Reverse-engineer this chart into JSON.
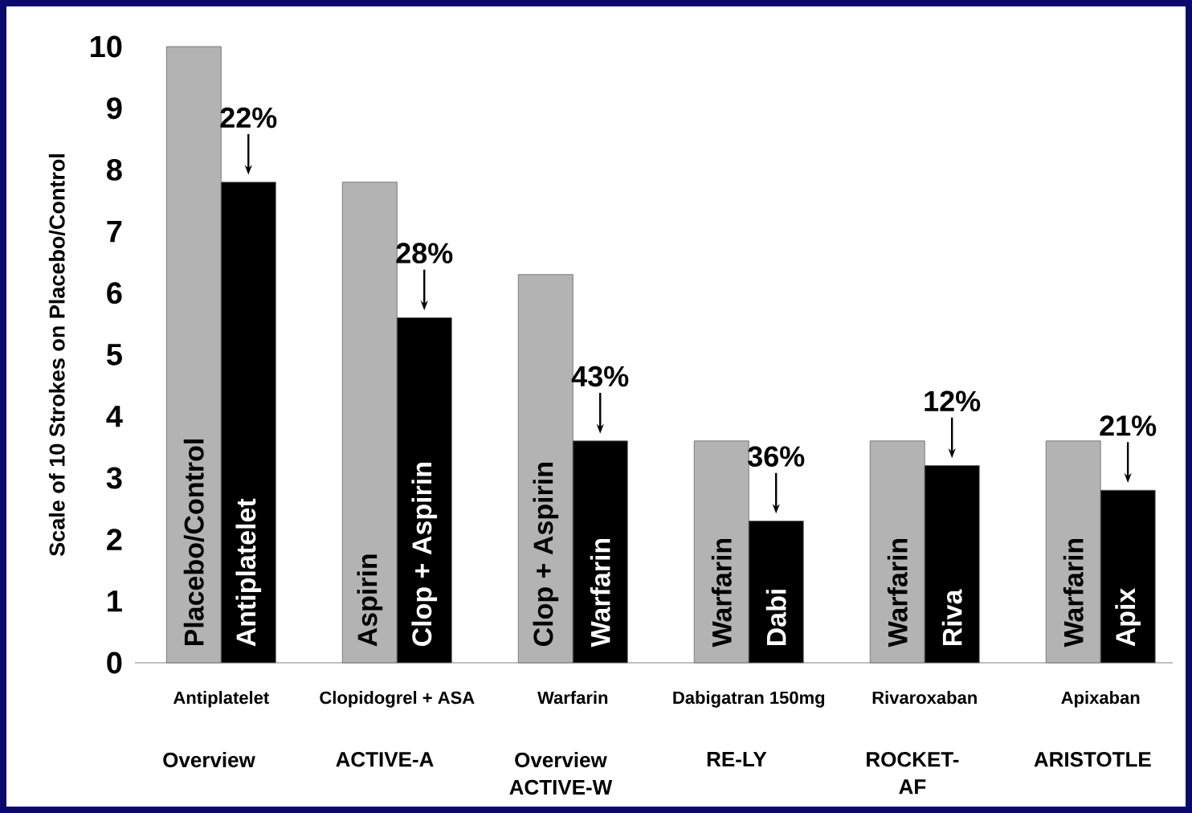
{
  "chart_data": {
    "type": "bar",
    "ylabel": "Scale of 10 Strokes on Placebo/Control",
    "categories": [
      "Antiplatelet",
      "Clopidogrel + ASA",
      "Warfarin",
      "Dabigatran 150mg",
      "Rivaroxaban",
      "Apixaban"
    ],
    "series": [
      {
        "color": "#b3b3b3",
        "values": [
          10,
          7.8,
          6.3,
          3.6,
          3.6,
          3.6
        ]
      },
      {
        "color": "#000000",
        "values": [
          7.8,
          5.6,
          3.6,
          2.3,
          3.2,
          2.8
        ]
      }
    ],
    "ylim": [
      0,
      10
    ],
    "yticks": [
      0,
      1,
      2,
      3,
      4,
      5,
      6,
      7,
      8,
      9,
      10
    ],
    "annotations": [
      {
        "text": "22%",
        "x": "Antiplatelet",
        "y": 7.8
      },
      {
        "text": "28%",
        "x": "Clopidogrel + ASA",
        "y": 5.6
      },
      {
        "text": "43%",
        "x": "Warfarin",
        "y": 3.6
      },
      {
        "text": "36%",
        "x": "Dabigatran 150mg",
        "y": 2.3
      },
      {
        "text": "12%",
        "x": "Rivaroxaban",
        "y": 3.2
      },
      {
        "text": "21%",
        "x": "Apixaban",
        "y": 2.8
      },
      "Placebo/Control",
      "Antiplatelet",
      "Aspirin",
      "Clop + Aspirin",
      "Clop + Aspirin",
      "Warfarin",
      "Warfarin",
      "Dabi",
      "Warfarin",
      "Riva",
      "Warfarin",
      "Apix",
      "Overview",
      "ACTIVE-A",
      "Overview ACTIVE-W",
      "RE-LY",
      "ROCKET-AF",
      "ARISTOTLE"
    ]
  }
}
